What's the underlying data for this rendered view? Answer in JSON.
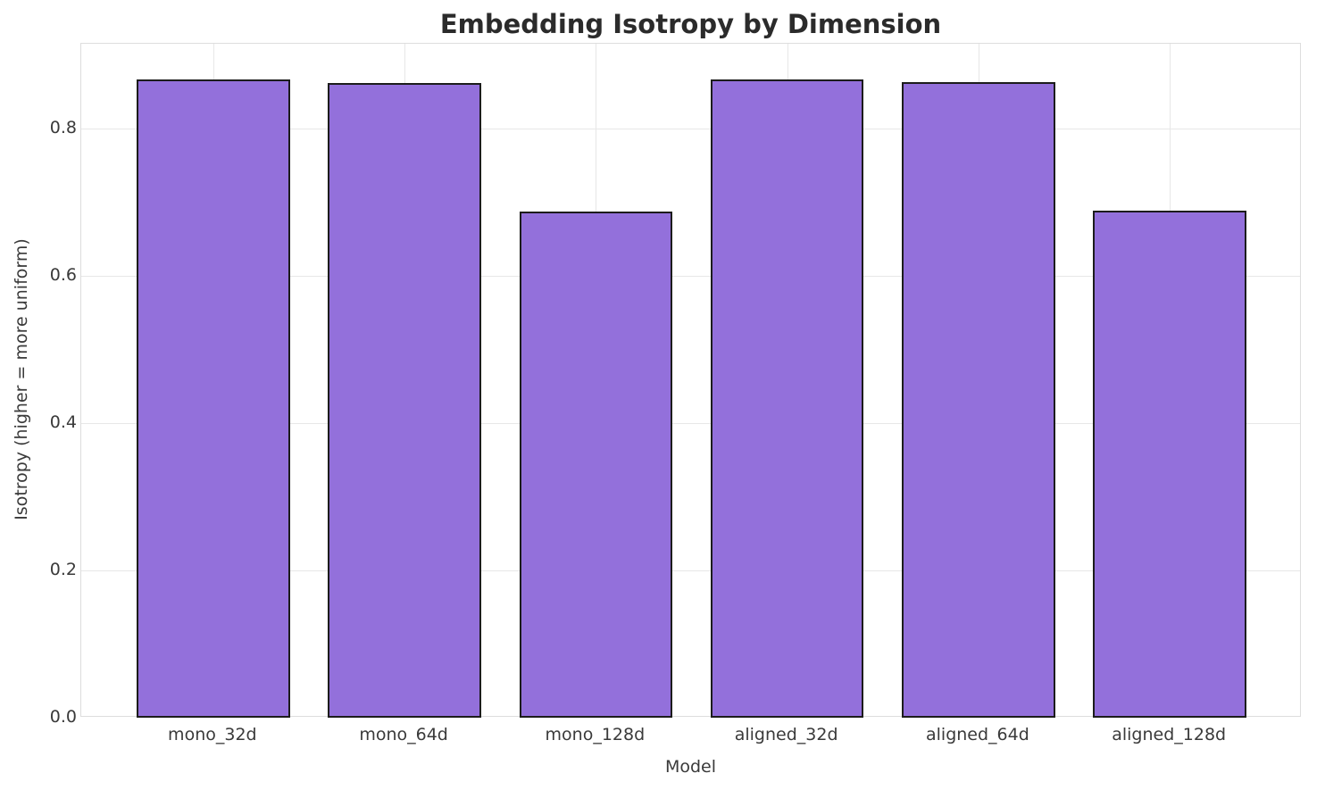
{
  "chart_data": {
    "type": "bar",
    "title": "Embedding Isotropy by Dimension",
    "xlabel": "Model",
    "ylabel": "Isotropy (higher = more uniform)",
    "categories": [
      "mono_32d",
      "mono_64d",
      "mono_128d",
      "aligned_32d",
      "aligned_64d",
      "aligned_128d"
    ],
    "values": [
      0.866,
      0.862,
      0.687,
      0.867,
      0.863,
      0.688
    ],
    "yticks": [
      0.0,
      0.2,
      0.4,
      0.6,
      0.8
    ],
    "ylim": [
      0,
      0.915
    ],
    "xlim": [
      -0.69,
      5.69
    ],
    "bar_rel_width": 0.8,
    "grid": "both",
    "legend": "none",
    "colors": {
      "bar_fill": "#9370db",
      "bar_edge": "#1c1c1c",
      "grid": "#e7e7e7",
      "text": "#3a3a3a",
      "title": "#2b2b2b",
      "background": "#ffffff"
    }
  }
}
